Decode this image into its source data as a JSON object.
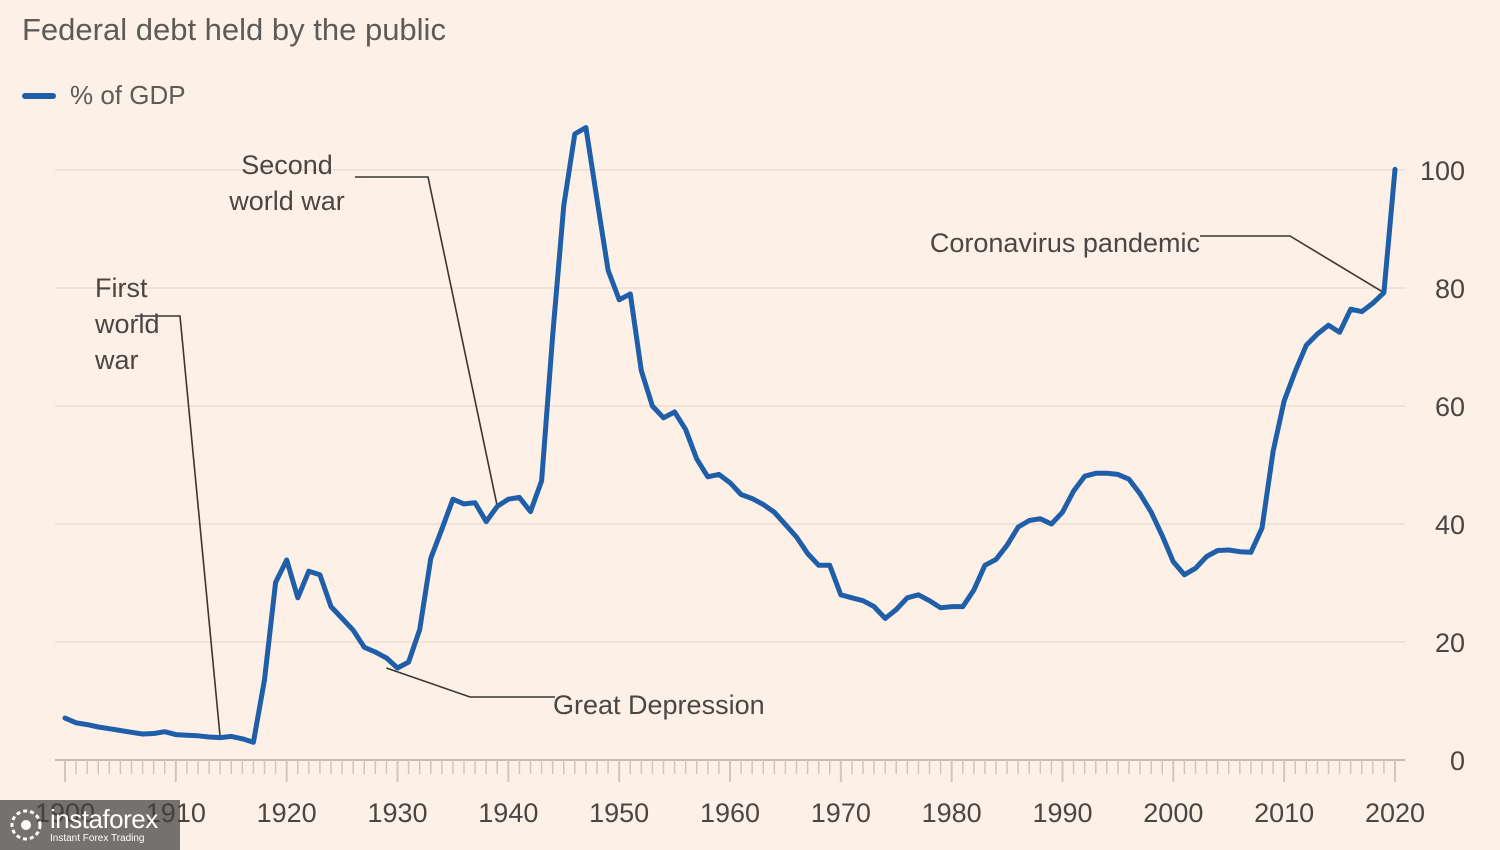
{
  "chart_data": {
    "type": "line",
    "title": "Federal debt held by the public",
    "legend_position": "top-left",
    "grid": true,
    "xlim": [
      1900,
      2020
    ],
    "ylim": [
      0,
      100
    ],
    "x_ticks": [
      "1900",
      "1910",
      "1920",
      "1930",
      "1940",
      "1950",
      "1960",
      "1970",
      "1980",
      "1990",
      "2000",
      "2010",
      "2020"
    ],
    "y_ticks": [
      "0",
      "20",
      "40",
      "60",
      "80",
      "100"
    ],
    "series": [
      {
        "name": "% of GDP",
        "color": "#1f5ea8",
        "x": [
          1900,
          1901,
          1902,
          1903,
          1904,
          1905,
          1906,
          1907,
          1908,
          1909,
          1910,
          1911,
          1912,
          1913,
          1914,
          1915,
          1916,
          1917,
          1918,
          1919,
          1920,
          1921,
          1922,
          1923,
          1924,
          1925,
          1926,
          1927,
          1928,
          1929,
          1930,
          1931,
          1932,
          1933,
          1934,
          1935,
          1936,
          1937,
          1938,
          1939,
          1940,
          1941,
          1942,
          1943,
          1944,
          1945,
          1946,
          1947,
          1948,
          1949,
          1950,
          1951,
          1952,
          1953,
          1954,
          1955,
          1956,
          1957,
          1958,
          1959,
          1960,
          1961,
          1962,
          1963,
          1964,
          1965,
          1966,
          1967,
          1968,
          1969,
          1970,
          1971,
          1972,
          1973,
          1974,
          1975,
          1976,
          1977,
          1978,
          1979,
          1980,
          1981,
          1982,
          1983,
          1984,
          1985,
          1986,
          1987,
          1988,
          1989,
          1990,
          1991,
          1992,
          1993,
          1994,
          1995,
          1996,
          1997,
          1998,
          1999,
          2000,
          2001,
          2002,
          2003,
          2004,
          2005,
          2006,
          2007,
          2008,
          2009,
          2010,
          2011,
          2012,
          2013,
          2014,
          2015,
          2016,
          2017,
          2018,
          2019,
          2020
        ],
        "y": [
          7.1,
          6.3,
          6.0,
          5.6,
          5.3,
          5.0,
          4.7,
          4.4,
          4.5,
          4.8,
          4.3,
          4.2,
          4.1,
          3.9,
          3.8,
          4.0,
          3.6,
          3.0,
          13.6,
          30.1,
          33.9,
          27.5,
          32.0,
          31.4,
          26.0,
          24.0,
          22.0,
          19.1,
          18.3,
          17.3,
          15.6,
          16.6,
          22.1,
          34.2,
          39.1,
          44.2,
          43.4,
          43.6,
          40.4,
          43.0,
          44.2,
          44.5,
          42.1,
          47.3,
          72.0,
          94.0,
          106.1,
          107.2,
          95.0,
          83.0,
          78.0,
          79.0,
          66.0,
          60.0,
          58.0,
          59.0,
          56.0,
          51.0,
          48.0,
          48.4,
          47.0,
          45.0,
          44.3,
          43.3,
          42.0,
          39.9,
          37.8,
          35.0,
          33.0,
          33.0,
          28.0,
          27.5,
          27.0,
          26.0,
          24.0,
          25.5,
          27.5,
          28.0,
          27.0,
          25.8,
          26.0,
          26.0,
          28.8,
          33.0,
          34.0,
          36.4,
          39.5,
          40.6,
          40.9,
          40.0,
          42.0,
          45.6,
          48.1,
          48.6,
          48.6,
          48.4,
          47.6,
          45.1,
          42.0,
          38.0,
          33.6,
          31.4,
          32.5,
          34.5,
          35.5,
          35.6,
          35.3,
          35.2,
          39.3,
          52.3,
          60.9,
          65.9,
          70.3,
          72.2,
          73.7,
          72.5,
          76.4,
          76.0,
          77.4,
          79.2,
          100.1
        ]
      }
    ],
    "annotations": [
      {
        "text": "First world war",
        "lines": [
          "First",
          "world",
          "war"
        ],
        "x": 1914,
        "y": 3.8
      },
      {
        "text": "Second world war",
        "lines": [
          "Second",
          "world war"
        ],
        "x": 1939,
        "y": 43.0
      },
      {
        "text": "Great Depression",
        "lines": [
          "Great Depression"
        ],
        "x": 1929,
        "y": 15.6
      },
      {
        "text": "Coronavirus pandemic",
        "lines": [
          "Coronavirus pandemic"
        ],
        "x": 2019,
        "y": 79.2
      }
    ]
  },
  "watermark": {
    "brand": "instaforex",
    "tagline": "Instant Forex Trading"
  }
}
